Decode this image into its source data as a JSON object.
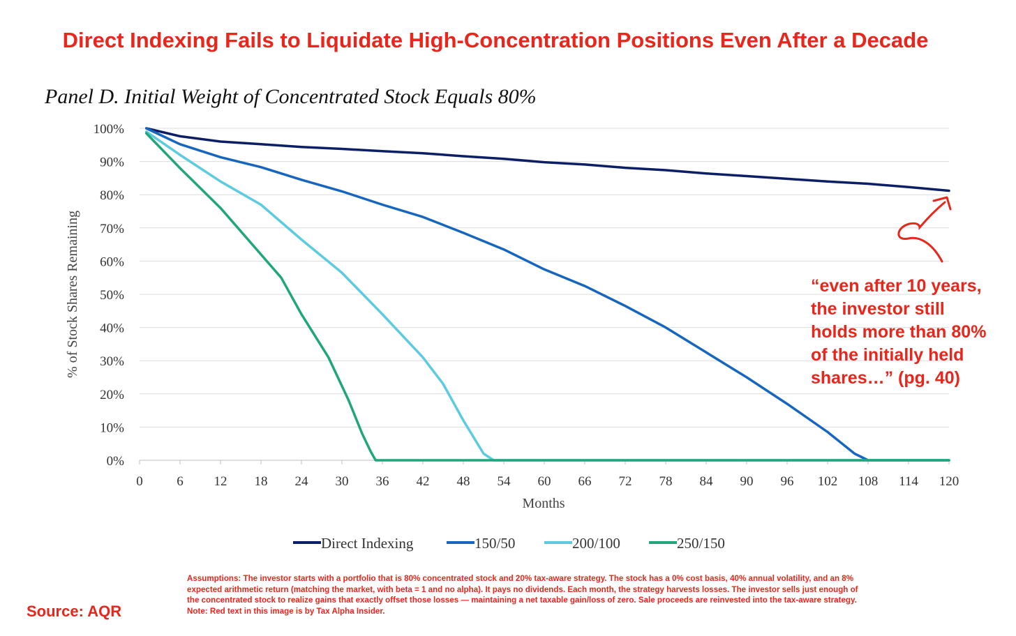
{
  "headline": "Direct Indexing Fails to Liquidate High-Concentration Positions Even After a Decade",
  "colors": {
    "accent_red": "#e8261b",
    "direct_indexing": "#0c1f66",
    "s150_50": "#1666c0",
    "s200_100": "#5ccbe0",
    "s250_150": "#1fa67a"
  },
  "chart_data": {
    "type": "line",
    "title": "Panel D. Initial Weight of Concentrated Stock Equals 80%",
    "xlabel": "Months",
    "ylabel": "% of Stock Shares Remaining",
    "xlim": [
      0,
      120
    ],
    "ylim": [
      0,
      100
    ],
    "x_ticks": [
      "0",
      "6",
      "12",
      "18",
      "24",
      "30",
      "36",
      "42",
      "48",
      "54",
      "60",
      "66",
      "72",
      "78",
      "84",
      "90",
      "96",
      "102",
      "108",
      "114",
      "120"
    ],
    "y_ticks": [
      "0%",
      "10%",
      "20%",
      "30%",
      "40%",
      "50%",
      "60%",
      "70%",
      "80%",
      "90%",
      "100%"
    ],
    "grid": "horizontal",
    "legend_position": "bottom",
    "series": [
      {
        "name": "Direct Indexing",
        "color": "#0c1f66",
        "points": [
          [
            1,
            100
          ],
          [
            6,
            97.6
          ],
          [
            12,
            96
          ],
          [
            18,
            95.2
          ],
          [
            24,
            94.4
          ],
          [
            30,
            93.8
          ],
          [
            36,
            93.1
          ],
          [
            42,
            92.5
          ],
          [
            48,
            91.6
          ],
          [
            54,
            90.8
          ],
          [
            60,
            89.8
          ],
          [
            66,
            89.1
          ],
          [
            72,
            88.1
          ],
          [
            78,
            87.4
          ],
          [
            84,
            86.4
          ],
          [
            90,
            85.6
          ],
          [
            96,
            84.8
          ],
          [
            102,
            84
          ],
          [
            108,
            83.3
          ],
          [
            114,
            82.3
          ],
          [
            120,
            81.2
          ]
        ]
      },
      {
        "name": "150/50",
        "color": "#1666c0",
        "points": [
          [
            1,
            100
          ],
          [
            6,
            95.2
          ],
          [
            12,
            91.3
          ],
          [
            18,
            88.3
          ],
          [
            24,
            84.5
          ],
          [
            30,
            81
          ],
          [
            36,
            77
          ],
          [
            42,
            73.3
          ],
          [
            48,
            68.5
          ],
          [
            54,
            63.5
          ],
          [
            60,
            57.5
          ],
          [
            66,
            52.5
          ],
          [
            72,
            46.5
          ],
          [
            78,
            40
          ],
          [
            84,
            32.5
          ],
          [
            90,
            25
          ],
          [
            96,
            17
          ],
          [
            102,
            8.5
          ],
          [
            106,
            2
          ],
          [
            108,
            0
          ],
          [
            120,
            0
          ]
        ]
      },
      {
        "name": "200/100",
        "color": "#5ccbe0",
        "points": [
          [
            1,
            99
          ],
          [
            6,
            92
          ],
          [
            12,
            84
          ],
          [
            18,
            77
          ],
          [
            24,
            66.5
          ],
          [
            30,
            56.5
          ],
          [
            36,
            44
          ],
          [
            42,
            31
          ],
          [
            45,
            23
          ],
          [
            48,
            12
          ],
          [
            51,
            2
          ],
          [
            52.5,
            0
          ],
          [
            120,
            0
          ]
        ]
      },
      {
        "name": "250/150",
        "color": "#1fa67a",
        "points": [
          [
            1,
            98.5
          ],
          [
            6,
            88
          ],
          [
            12,
            76
          ],
          [
            18,
            62
          ],
          [
            21,
            55
          ],
          [
            24,
            44
          ],
          [
            28,
            31
          ],
          [
            31,
            18
          ],
          [
            33,
            8
          ],
          [
            34.3,
            2.5
          ],
          [
            35,
            0
          ],
          [
            120,
            0
          ]
        ]
      }
    ]
  },
  "callout_lines": [
    "“even after 10 years,",
    "the investor still",
    "holds more than 80%",
    "of the initially held",
    "shares…” (pg. 40)"
  ],
  "source": "Source: AQR",
  "assumptions_lines": [
    "Assumptions: The investor starts with a portfolio that is 80% concentrated stock and 20% tax-aware strategy. The stock has a 0% cost basis, 40% annual volatility, and an 8%",
    "expected arithmetic return (matching the market, with beta = 1 and no alpha). It pays no dividends. Each month, the strategy harvests losses. The investor sells just enough of",
    "the concentrated stock to realize gains that exactly offset those losses — maintaining a net taxable gain/loss of zero. Sale proceeds are reinvested into the tax-aware strategy.",
    "Note: Red text in this image is by Tax Alpha Insider."
  ]
}
